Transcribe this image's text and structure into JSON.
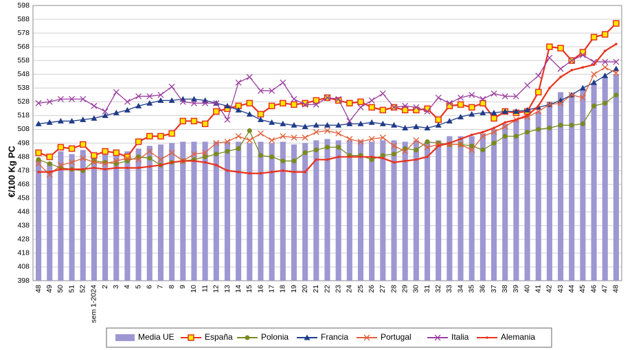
{
  "chart_data": {
    "type": "combo",
    "y_label": "€/100 Kg PC",
    "categories": [
      "48",
      "49",
      "50",
      "51",
      "52",
      "sem 1-2024",
      "2",
      "3",
      "4",
      "5",
      "6",
      "7",
      "8",
      "9",
      "10",
      "11",
      "12",
      "13",
      "14",
      "15",
      "16",
      "17",
      "18",
      "19",
      "20",
      "21",
      "22",
      "23",
      "24",
      "25",
      "26",
      "27",
      "28",
      "29",
      "30",
      "31",
      "32",
      "33",
      "34",
      "35",
      "36",
      "37",
      "38",
      "39",
      "40",
      "41",
      "42",
      "43",
      "44",
      "45",
      "46",
      "47",
      "48"
    ],
    "ylim": [
      398,
      598
    ],
    "yticks": [
      398,
      408,
      418,
      428,
      438,
      448,
      458,
      468,
      478,
      488,
      498,
      508,
      518,
      528,
      538,
      548,
      558,
      568,
      578,
      588,
      598
    ],
    "grid": true,
    "series": [
      {
        "name": "Media UE",
        "kind": "bar",
        "color": "#9d97d2",
        "values": [
          486,
          484,
          492,
          490,
          493,
          491,
          491,
          490,
          492,
          494,
          496,
          497,
          498,
          499,
          499,
          499,
          499,
          499,
          499,
          498,
          499,
          498,
          499,
          497,
          498,
          500,
          501,
          500,
          500,
          500,
          499,
          500,
          500,
          499,
          500,
          499,
          500,
          503,
          503,
          503,
          505,
          508,
          512,
          515,
          518,
          521,
          528,
          535,
          534,
          537,
          541,
          546,
          548
        ]
      },
      {
        "name": "España",
        "kind": "line",
        "marker": "square",
        "color": "#e8321e",
        "values": [
          491,
          488,
          495,
          494,
          497,
          489,
          492,
          491,
          488,
          499,
          503,
          503,
          505,
          514,
          514,
          512,
          521,
          523,
          525,
          527,
          519,
          525,
          527,
          526,
          527,
          529,
          531,
          529,
          527,
          528,
          524,
          522,
          524,
          522,
          522,
          523,
          515,
          525,
          526,
          524,
          527,
          516,
          521,
          520,
          521,
          535,
          568,
          567,
          558,
          564,
          575,
          577,
          585
        ]
      },
      {
        "name": "Polonia",
        "kind": "line",
        "marker": "circle",
        "color": "#7a8a1e",
        "values": [
          486,
          483,
          480,
          479,
          478,
          485,
          484,
          483,
          485,
          488,
          487,
          482,
          484,
          485,
          486,
          488,
          490,
          492,
          494,
          507,
          489,
          488,
          485,
          485,
          491,
          493,
          495,
          495,
          489,
          489,
          486,
          489,
          490,
          494,
          493,
          499,
          498,
          497,
          497,
          496,
          493,
          498,
          503,
          503,
          506,
          508,
          509,
          511,
          511,
          512,
          525,
          527,
          533
        ]
      },
      {
        "name": "Francia",
        "kind": "line",
        "marker": "triangle",
        "color": "#1f3c88",
        "values": [
          512,
          513,
          514,
          514,
          515,
          516,
          518,
          520,
          522,
          525,
          527,
          529,
          529,
          530,
          530,
          529,
          527,
          525,
          522,
          519,
          515,
          513,
          512,
          511,
          510,
          511,
          511,
          511,
          512,
          512,
          513,
          512,
          511,
          509,
          510,
          509,
          511,
          514,
          517,
          519,
          520,
          520,
          521,
          521,
          522,
          524,
          526,
          529,
          533,
          538,
          542,
          547,
          552
        ]
      },
      {
        "name": "Portugal",
        "kind": "line",
        "marker": "cross",
        "color": "#e0603a",
        "values": [
          483,
          475,
          482,
          484,
          487,
          484,
          483,
          485,
          487,
          486,
          492,
          486,
          491,
          485,
          490,
          491,
          498,
          499,
          503,
          500,
          505,
          500,
          503,
          502,
          502,
          506,
          507,
          505,
          501,
          499,
          501,
          502,
          496,
          492,
          500,
          495,
          497,
          497,
          497,
          493,
          503,
          506,
          510,
          515,
          517,
          521,
          526,
          527,
          533,
          531,
          548,
          553,
          549
        ]
      },
      {
        "name": "Italia",
        "kind": "line",
        "marker": "cross",
        "color": "#9b3fa0",
        "values": [
          527,
          528,
          530,
          530,
          530,
          525,
          521,
          535,
          528,
          532,
          532,
          533,
          539,
          528,
          527,
          527,
          527,
          515,
          542,
          546,
          536,
          536,
          542,
          530,
          526,
          526,
          531,
          530,
          514,
          524,
          529,
          534,
          524,
          525,
          524,
          521,
          531,
          527,
          531,
          533,
          530,
          534,
          532,
          532,
          540,
          547,
          560,
          552,
          558,
          562,
          557,
          557,
          557
        ]
      },
      {
        "name": "Alemania",
        "kind": "line",
        "marker": "dot",
        "color": "#e8321e",
        "values": [
          477,
          477,
          479,
          479,
          479,
          480,
          479,
          480,
          480,
          480,
          481,
          482,
          484,
          485,
          485,
          484,
          482,
          478,
          477,
          476,
          476,
          477,
          478,
          477,
          477,
          486,
          486,
          488,
          488,
          488,
          488,
          487,
          484,
          485,
          486,
          488,
          496,
          498,
          501,
          504,
          506,
          509,
          513,
          515,
          518,
          525,
          538,
          546,
          551,
          553,
          555,
          565,
          570
        ]
      }
    ]
  }
}
